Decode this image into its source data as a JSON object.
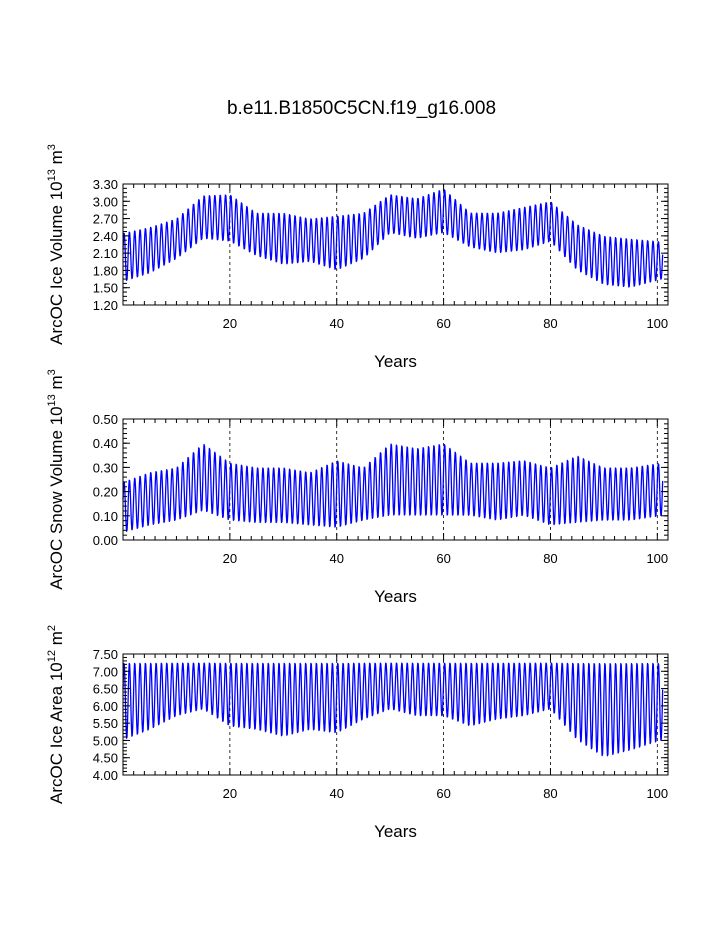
{
  "title": "b.e11.B1850C5CN.f19_g16.008",
  "series_color": "#0000ff",
  "chart_data": [
    {
      "type": "line",
      "title": "",
      "xlabel": "Years",
      "ylabel": "ArcOC Ice Volume 10^13 m^3",
      "ylabel_parts": {
        "a": "ArcOC Ice Volume 10",
        "b": "13",
        "c": " m",
        "d": "3"
      },
      "xlim": [
        0,
        102
      ],
      "ylim": [
        1.2,
        3.3
      ],
      "x_ticks": [
        20,
        40,
        60,
        80,
        100
      ],
      "x_tick_labels": [
        "20",
        "40",
        "60",
        "80",
        "100"
      ],
      "y_ticks": [
        1.2,
        1.5,
        1.8,
        2.1,
        2.4,
        2.7,
        3.0,
        3.3
      ],
      "y_tick_labels": [
        "1.20",
        "1.50",
        "1.80",
        "2.10",
        "2.40",
        "2.70",
        "3.00",
        "3.30"
      ],
      "y_minor_step": 0.075,
      "grid": "dashed vertical lines at major x ticks",
      "seasonal": {
        "start_year": 0,
        "years": 101,
        "samples_per_year": 12,
        "envelope_years": [
          0,
          5,
          10,
          15,
          20,
          25,
          30,
          35,
          40,
          45,
          50,
          55,
          60,
          65,
          70,
          75,
          80,
          85,
          90,
          95,
          101
        ],
        "max": [
          2.45,
          2.55,
          2.7,
          3.1,
          3.12,
          2.8,
          2.8,
          2.7,
          2.75,
          2.8,
          3.12,
          3.05,
          3.22,
          2.8,
          2.8,
          2.9,
          3.0,
          2.6,
          2.4,
          2.35,
          2.3
        ],
        "min": [
          1.6,
          1.75,
          2.0,
          2.35,
          2.3,
          2.05,
          1.9,
          1.95,
          1.8,
          2.0,
          2.45,
          2.35,
          2.45,
          2.2,
          2.1,
          2.15,
          2.3,
          1.8,
          1.55,
          1.5,
          1.65
        ]
      }
    },
    {
      "type": "line",
      "title": "",
      "xlabel": "Years",
      "ylabel": "ArcOC Snow Volume 10^13 m^3",
      "ylabel_parts": {
        "a": "ArcOC Snow Volume 10",
        "b": "13",
        "c": " m",
        "d": "3"
      },
      "xlim": [
        0,
        102
      ],
      "ylim": [
        0.0,
        0.5
      ],
      "x_ticks": [
        20,
        40,
        60,
        80,
        100
      ],
      "x_tick_labels": [
        "20",
        "40",
        "60",
        "80",
        "100"
      ],
      "y_ticks": [
        0.0,
        0.1,
        0.2,
        0.3,
        0.4,
        0.5
      ],
      "y_tick_labels": [
        "0.00",
        "0.10",
        "0.20",
        "0.30",
        "0.40",
        "0.50"
      ],
      "y_minor_step": 0.02,
      "grid": "dashed vertical lines at major x ticks",
      "seasonal": {
        "start_year": 0,
        "years": 101,
        "samples_per_year": 12,
        "envelope_years": [
          0,
          5,
          10,
          15,
          20,
          25,
          30,
          35,
          40,
          45,
          50,
          55,
          60,
          65,
          70,
          75,
          80,
          85,
          90,
          95,
          101
        ],
        "max": [
          0.24,
          0.28,
          0.3,
          0.4,
          0.32,
          0.3,
          0.3,
          0.28,
          0.33,
          0.3,
          0.4,
          0.38,
          0.4,
          0.32,
          0.32,
          0.33,
          0.3,
          0.35,
          0.3,
          0.3,
          0.32
        ],
        "min": [
          0.03,
          0.06,
          0.08,
          0.12,
          0.08,
          0.07,
          0.07,
          0.06,
          0.05,
          0.08,
          0.1,
          0.1,
          0.1,
          0.1,
          0.08,
          0.1,
          0.06,
          0.07,
          0.08,
          0.08,
          0.1
        ]
      }
    },
    {
      "type": "line",
      "title": "",
      "xlabel": "Years",
      "ylabel": "ArcOC Ice Area 10^12 m^2",
      "ylabel_parts": {
        "a": "ArcOC Ice Area 10",
        "b": "12",
        "c": " m",
        "d": "2"
      },
      "xlim": [
        0,
        102
      ],
      "ylim": [
        4.0,
        7.5
      ],
      "x_ticks": [
        20,
        40,
        60,
        80,
        100
      ],
      "x_tick_labels": [
        "20",
        "40",
        "60",
        "80",
        "100"
      ],
      "y_ticks": [
        4.0,
        4.5,
        5.0,
        5.5,
        6.0,
        6.5,
        7.0,
        7.5
      ],
      "y_tick_labels": [
        "4.00",
        "4.50",
        "5.00",
        "5.50",
        "6.00",
        "6.50",
        "7.00",
        "7.50"
      ],
      "y_minor_step": 0.1,
      "grid": "dashed vertical lines at major x ticks",
      "seasonal": {
        "start_year": 0,
        "years": 101,
        "samples_per_year": 12,
        "envelope_years": [
          0,
          5,
          10,
          15,
          20,
          25,
          30,
          35,
          40,
          45,
          50,
          55,
          60,
          65,
          70,
          75,
          80,
          85,
          90,
          95,
          101
        ],
        "max": [
          7.25,
          7.25,
          7.25,
          7.25,
          7.25,
          7.25,
          7.25,
          7.25,
          7.25,
          7.25,
          7.25,
          7.25,
          7.25,
          7.25,
          7.25,
          7.25,
          7.25,
          7.25,
          7.25,
          7.25,
          7.25
        ],
        "min": [
          5.0,
          5.3,
          5.7,
          5.9,
          5.4,
          5.3,
          5.1,
          5.3,
          5.2,
          5.6,
          5.9,
          5.7,
          5.7,
          5.4,
          5.6,
          5.7,
          5.9,
          5.0,
          4.5,
          4.7,
          5.0
        ]
      }
    }
  ]
}
